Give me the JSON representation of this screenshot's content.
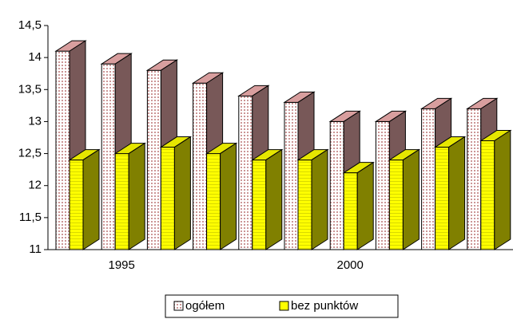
{
  "chart_data": {
    "type": "bar3d",
    "categories": [
      null,
      "1995",
      null,
      null,
      null,
      null,
      "2000",
      null,
      null,
      null
    ],
    "series": [
      {
        "name": "ogółem",
        "color": "#f0b0b0",
        "values": [
          14.1,
          13.9,
          13.8,
          13.6,
          13.4,
          13.3,
          13.0,
          13.0,
          13.2,
          13.2
        ]
      },
      {
        "name": "bez punktów",
        "color": "#ffff00",
        "values": [
          12.4,
          12.5,
          12.6,
          12.5,
          12.4,
          12.4,
          12.2,
          12.4,
          12.6,
          12.7
        ]
      }
    ],
    "ylim": [
      11,
      14.5
    ],
    "yticks": [
      11,
      {
        "value": 11.5,
        "label": "11,5"
      },
      12,
      {
        "value": 12.5,
        "label": "12,5"
      },
      13,
      {
        "value": 13.5,
        "label": "13,5"
      },
      14,
      {
        "value": 14.5,
        "label": "14,5"
      }
    ],
    "legend": "bottom"
  }
}
